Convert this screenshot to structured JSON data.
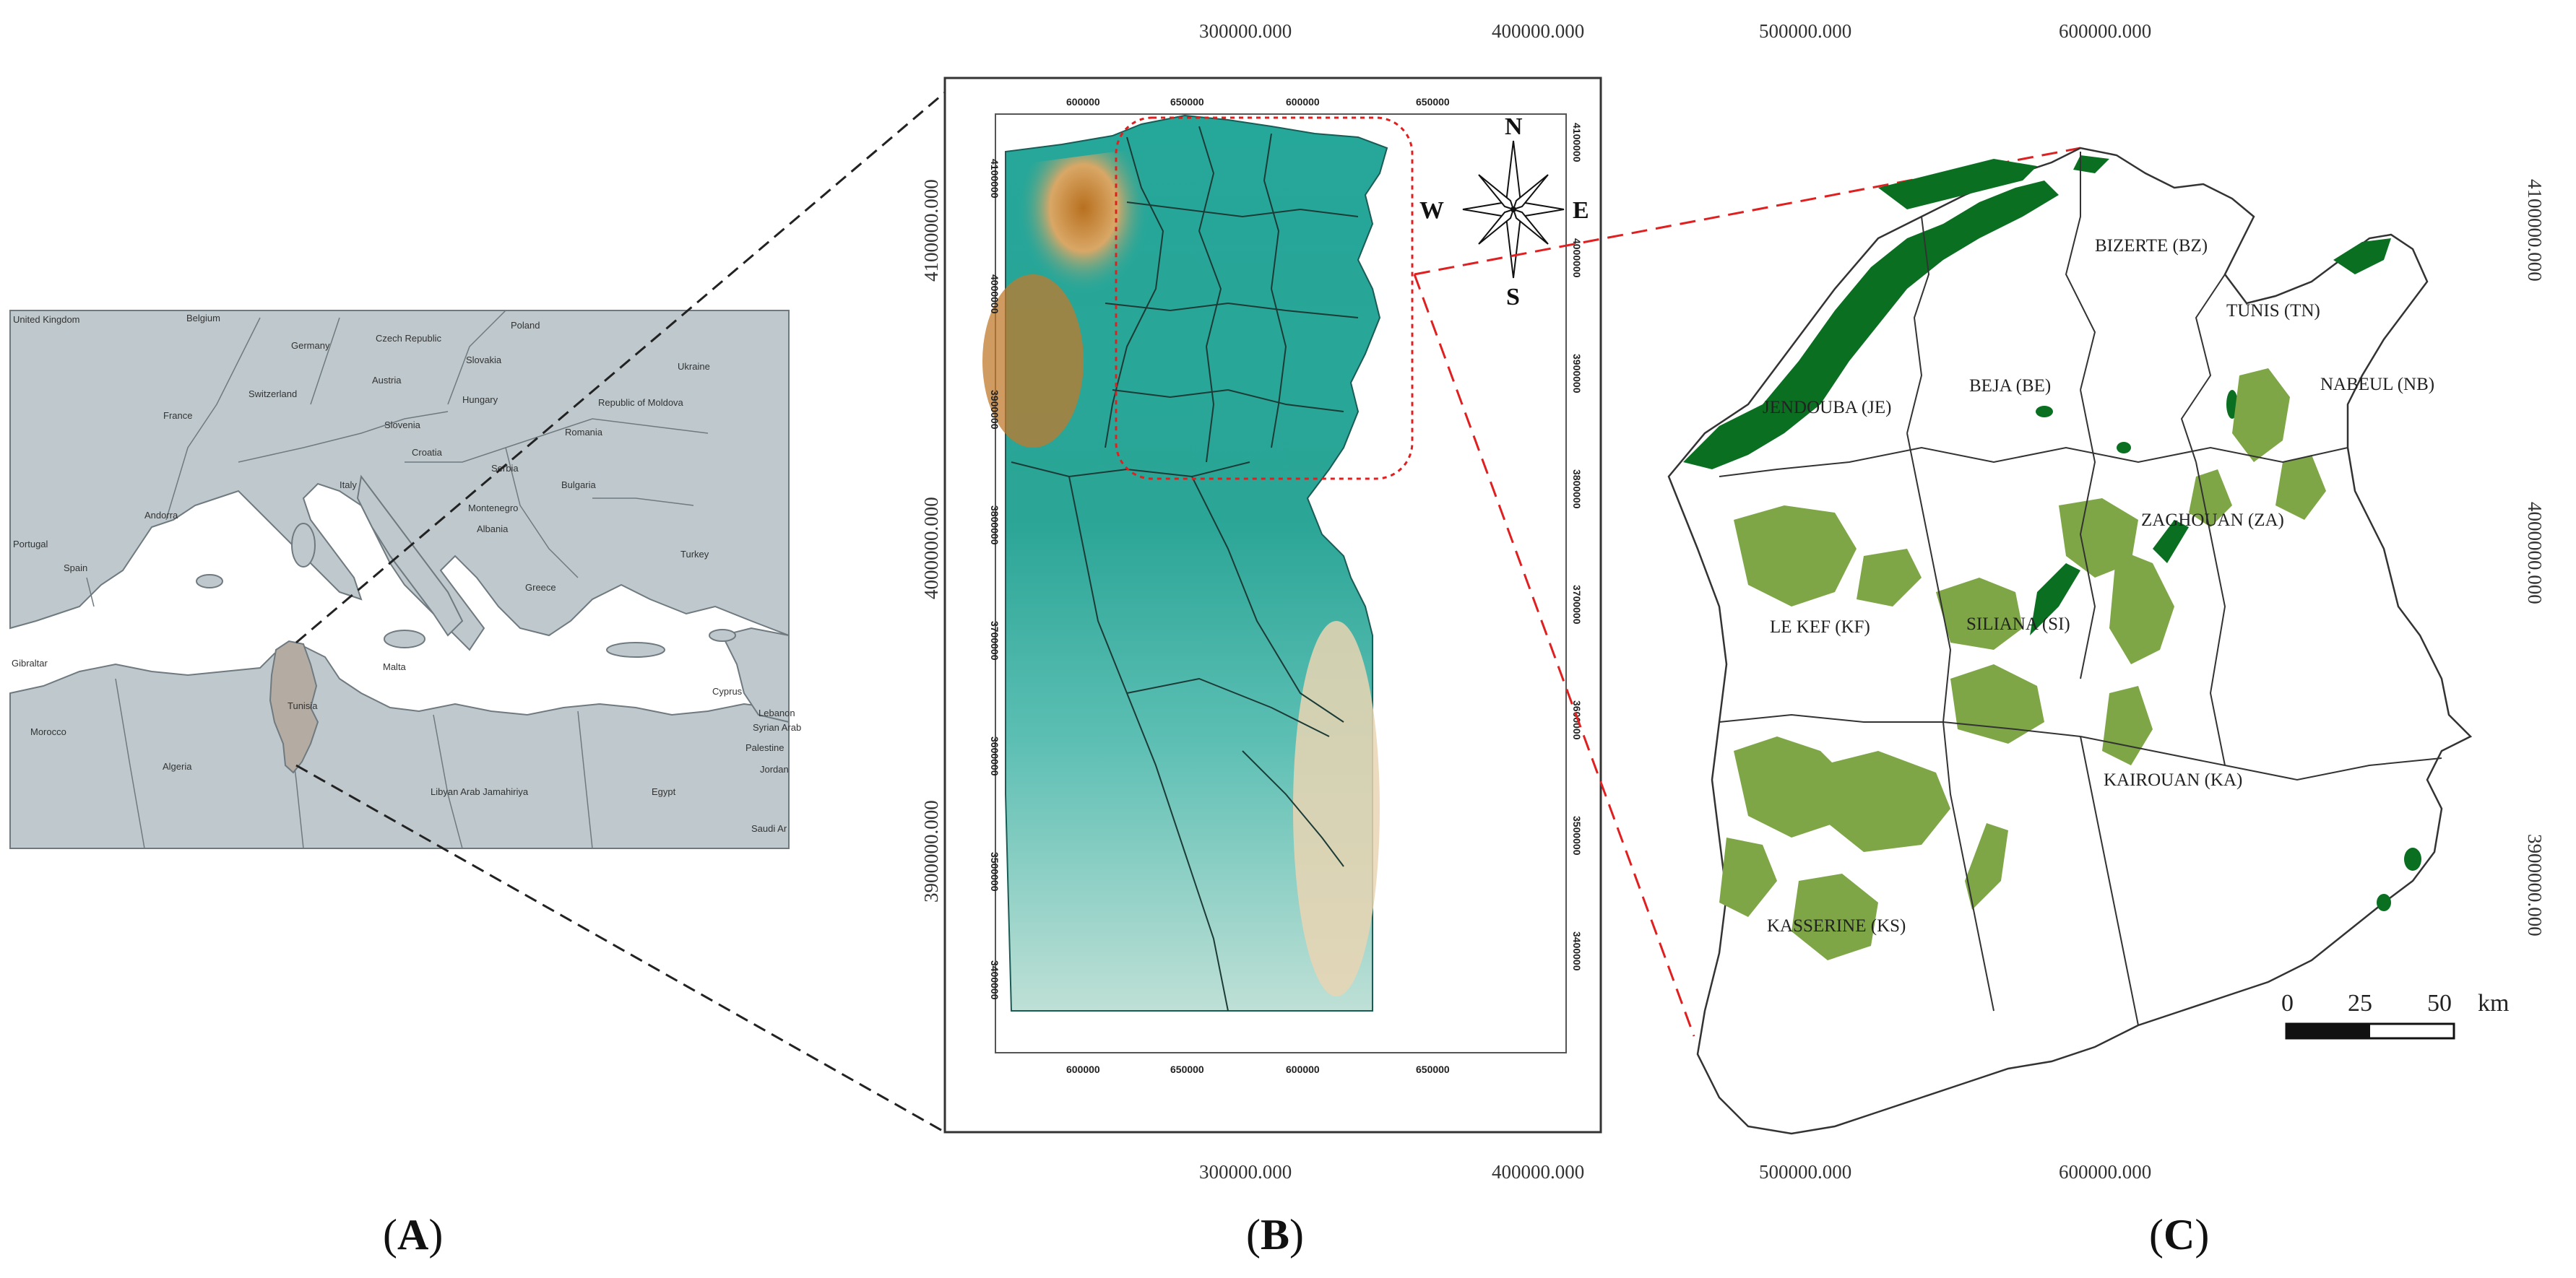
{
  "panels": {
    "a": "A",
    "b": "B",
    "c": "C"
  },
  "panel_a": {
    "countries": [
      "United Kingdom",
      "Belgium",
      "Germany",
      "Poland",
      "Czech Republic",
      "Slovakia",
      "Ukraine",
      "Austria",
      "Hungary",
      "France",
      "Switzerland",
      "Republic of Moldova",
      "Romania",
      "Slovenia",
      "Croatia",
      "Serbia",
      "Bulgaria",
      "Italy",
      "Andorra",
      "Montenegro",
      "Albania",
      "Portugal",
      "Spain",
      "Greece",
      "Turkey",
      "Gibraltar",
      "Malta",
      "Tunisia",
      "Morocco",
      "Algeria",
      "Libyan Arab Jamahiriya",
      "Egypt",
      "Cyprus",
      "Lebanon",
      "Syrian Arab",
      "Palestine",
      "Jordan",
      "Saudi Ar"
    ],
    "colors": {
      "land": "#bfc9cd",
      "sea": "#ffffff",
      "border": "#6f7a80",
      "highlight": "#b4aca3"
    }
  },
  "panel_b": {
    "top_x_labels": [
      "300000.000",
      "400000.000"
    ],
    "bottom_x_labels": [
      "300000.000",
      "400000.000"
    ],
    "left_y_labels": [
      "4100000.000",
      "4000000.000",
      "3900000.000"
    ],
    "inner_top_ticks": [
      "600000",
      "650000",
      "600000",
      "650000"
    ],
    "inner_bottom_ticks": [
      "600000",
      "650000",
      "600000",
      "650000"
    ],
    "inner_left_ticks": [
      "4100000",
      "4000000",
      "3900000",
      "3800000",
      "3700000",
      "3600000",
      "3500000",
      "3400000"
    ],
    "inner_right_ticks": [
      "4100000",
      "4000000",
      "3900000",
      "3800000",
      "3700000",
      "3600000",
      "3500000",
      "3400000"
    ],
    "compass": {
      "n": "N",
      "s": "S",
      "e": "E",
      "w": "W"
    },
    "colors": {
      "teal": "#25a79a",
      "brown": "#c07a2c",
      "tan": "#e9d5b3",
      "roi": "#e02020"
    }
  },
  "panel_c": {
    "top_x_labels": [
      "500000.000",
      "600000.000"
    ],
    "bottom_x_labels": [
      "500000.000",
      "600000.000"
    ],
    "right_y_labels": [
      "4100000.000",
      "4000000.000",
      "3900000.000"
    ],
    "regions": [
      "BIZERTE (BZ)",
      "TUNIS (TN)",
      "NABEUL (NB)",
      "JENDOUBA (JE)",
      "BEJA (BE)",
      "ZAGHOUAN (ZA)",
      "LE KEF (KF)",
      "SILIANA (SI)",
      "KAIROUAN (KA)",
      "KASSERINE (KS)"
    ],
    "scale_bar": {
      "labels": [
        "0",
        "25",
        "50"
      ],
      "unit": "km"
    },
    "colors": {
      "dark_green": "#0a6f21",
      "light_green": "#7ea646"
    }
  }
}
